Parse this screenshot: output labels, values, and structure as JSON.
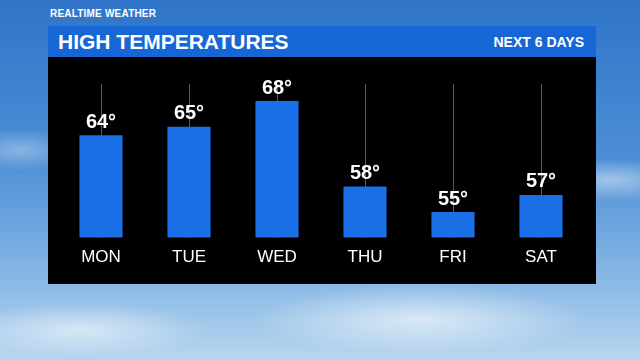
{
  "chart_data": {
    "type": "bar",
    "title": "HIGH TEMPERATURES",
    "subtitle": "NEXT 6 DAYS",
    "annotations": [
      "REALTIME WEATHER"
    ],
    "categories": [
      "MON",
      "TUE",
      "WED",
      "THU",
      "FRI",
      "SAT"
    ],
    "values": [
      64,
      65,
      68,
      58,
      55,
      57
    ],
    "value_labels": [
      "64°",
      "65°",
      "68°",
      "58°",
      "55°",
      "57°"
    ],
    "color": "#1a6ee6",
    "ylim": [
      52,
      70
    ],
    "grid": true,
    "data_labels": true,
    "tick_labels": "x"
  }
}
